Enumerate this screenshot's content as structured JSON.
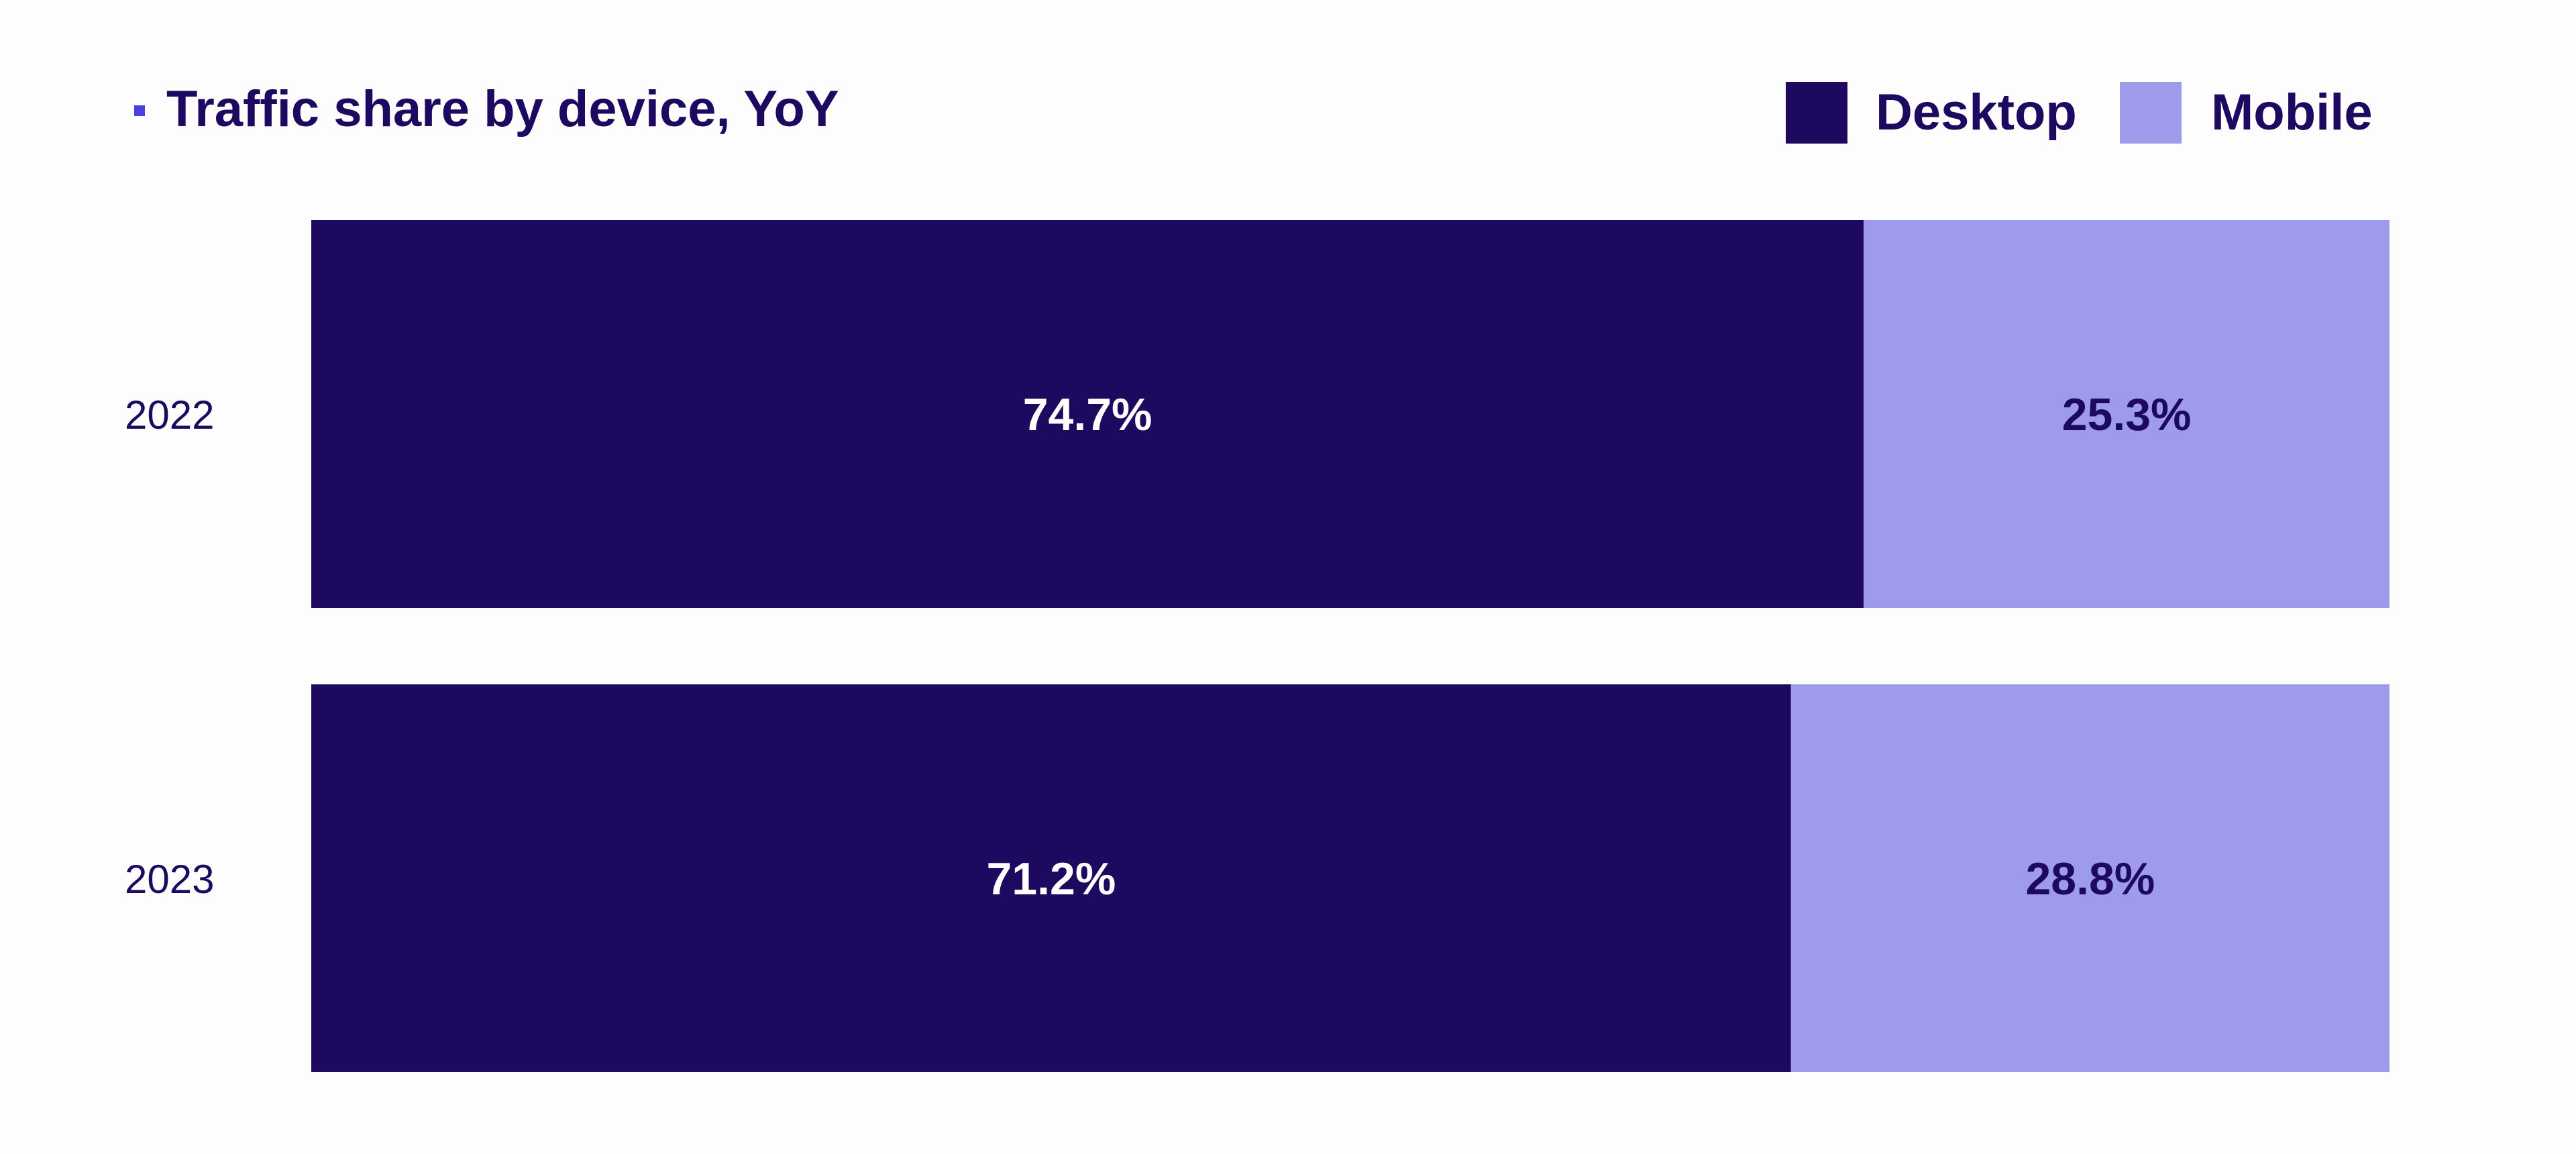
{
  "colors": {
    "desktop": "#1d0a60",
    "mobile": "#9e9bec",
    "title_text": "#1d0a60",
    "title_marker": "#4b3fe0",
    "year_label": "#1d0a60",
    "label_on_dark": "#ffffff",
    "label_on_light": "#1d0a60",
    "background": "#fdfdfe"
  },
  "chart_data": {
    "type": "bar",
    "orientation": "horizontal",
    "stacked": true,
    "title": "Traffic share by device, YoY",
    "categories": [
      "2022",
      "2023"
    ],
    "series": [
      {
        "name": "Desktop",
        "values": [
          74.7,
          71.2
        ],
        "labels": [
          "74.7%",
          "71.2%"
        ]
      },
      {
        "name": "Mobile",
        "values": [
          25.3,
          28.8
        ],
        "labels": [
          "25.3%",
          "28.8%"
        ]
      }
    ],
    "xlim": [
      0,
      100
    ],
    "unit": "%",
    "grid": false,
    "legend": "top-right"
  }
}
